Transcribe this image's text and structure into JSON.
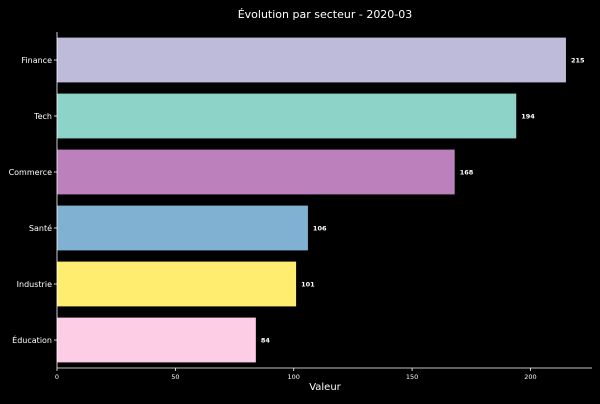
{
  "chart_data": {
    "type": "bar",
    "orientation": "horizontal",
    "title": "Évolution par secteur - 2020-03",
    "xlabel": "Valeur",
    "ylabel": "",
    "categories": [
      "Finance",
      "Tech",
      "Commerce",
      "Santé",
      "Industrie",
      "Éducation"
    ],
    "values": [
      215,
      194,
      168,
      106,
      101,
      84
    ],
    "colors": [
      "#bebada",
      "#8dd3c7",
      "#bc80bd",
      "#80b1d3",
      "#ffed6f",
      "#fccde5"
    ],
    "xlim": [
      0,
      226
    ],
    "xticks": [
      0,
      50,
      100,
      150,
      200
    ],
    "grid": false,
    "legend": "none",
    "background": "#000000",
    "text_color": "#ffffff"
  }
}
